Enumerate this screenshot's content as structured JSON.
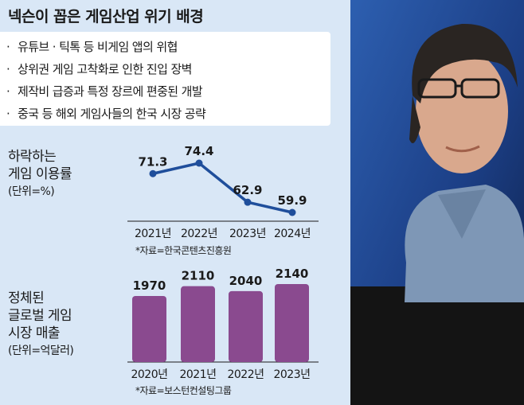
{
  "title": "넥슨이 꼽은 게임산업 위기 배경",
  "reasons": [
    "유튜브 · 틱톡 등 비게임 앱의 위협",
    "상위권 게임 고착화로 인한 진입 장벽",
    "제작비 급증과 특정 장르에 편중된 개발",
    "중국 등 해외 게임사들의 한국 시장 공략"
  ],
  "bullet": "·",
  "line_chart": {
    "label_lines": [
      "하락하는",
      "게임 이용률"
    ],
    "unit": "(단위=%)",
    "source": "*자료=한국콘텐츠진흥원"
  },
  "bar_chart": {
    "label_lines": [
      "정체된",
      "글로벌 게임",
      "시장 매출"
    ],
    "unit": "(단위=억달러)",
    "source": "*자료=보스턴컨설팅그룹"
  },
  "chart_data": [
    {
      "type": "line",
      "categories": [
        "2021년",
        "2022년",
        "2023년",
        "2024년"
      ],
      "values": [
        71.3,
        74.4,
        62.9,
        59.9
      ],
      "value_labels": [
        "71.3",
        "74.4",
        "62.9",
        "59.9"
      ],
      "color": "#1f4e9b"
    },
    {
      "type": "bar",
      "categories": [
        "2020년",
        "2021년",
        "2022년",
        "2023년"
      ],
      "values": [
        1970,
        2110,
        2040,
        2140
      ],
      "value_labels": [
        "1970",
        "2110",
        "2040",
        "2140"
      ],
      "color": "#8a4a8f"
    }
  ],
  "colors": {
    "background": "#d9e7f6",
    "line": "#1f4e9b",
    "bar": "#8a4a8f"
  }
}
